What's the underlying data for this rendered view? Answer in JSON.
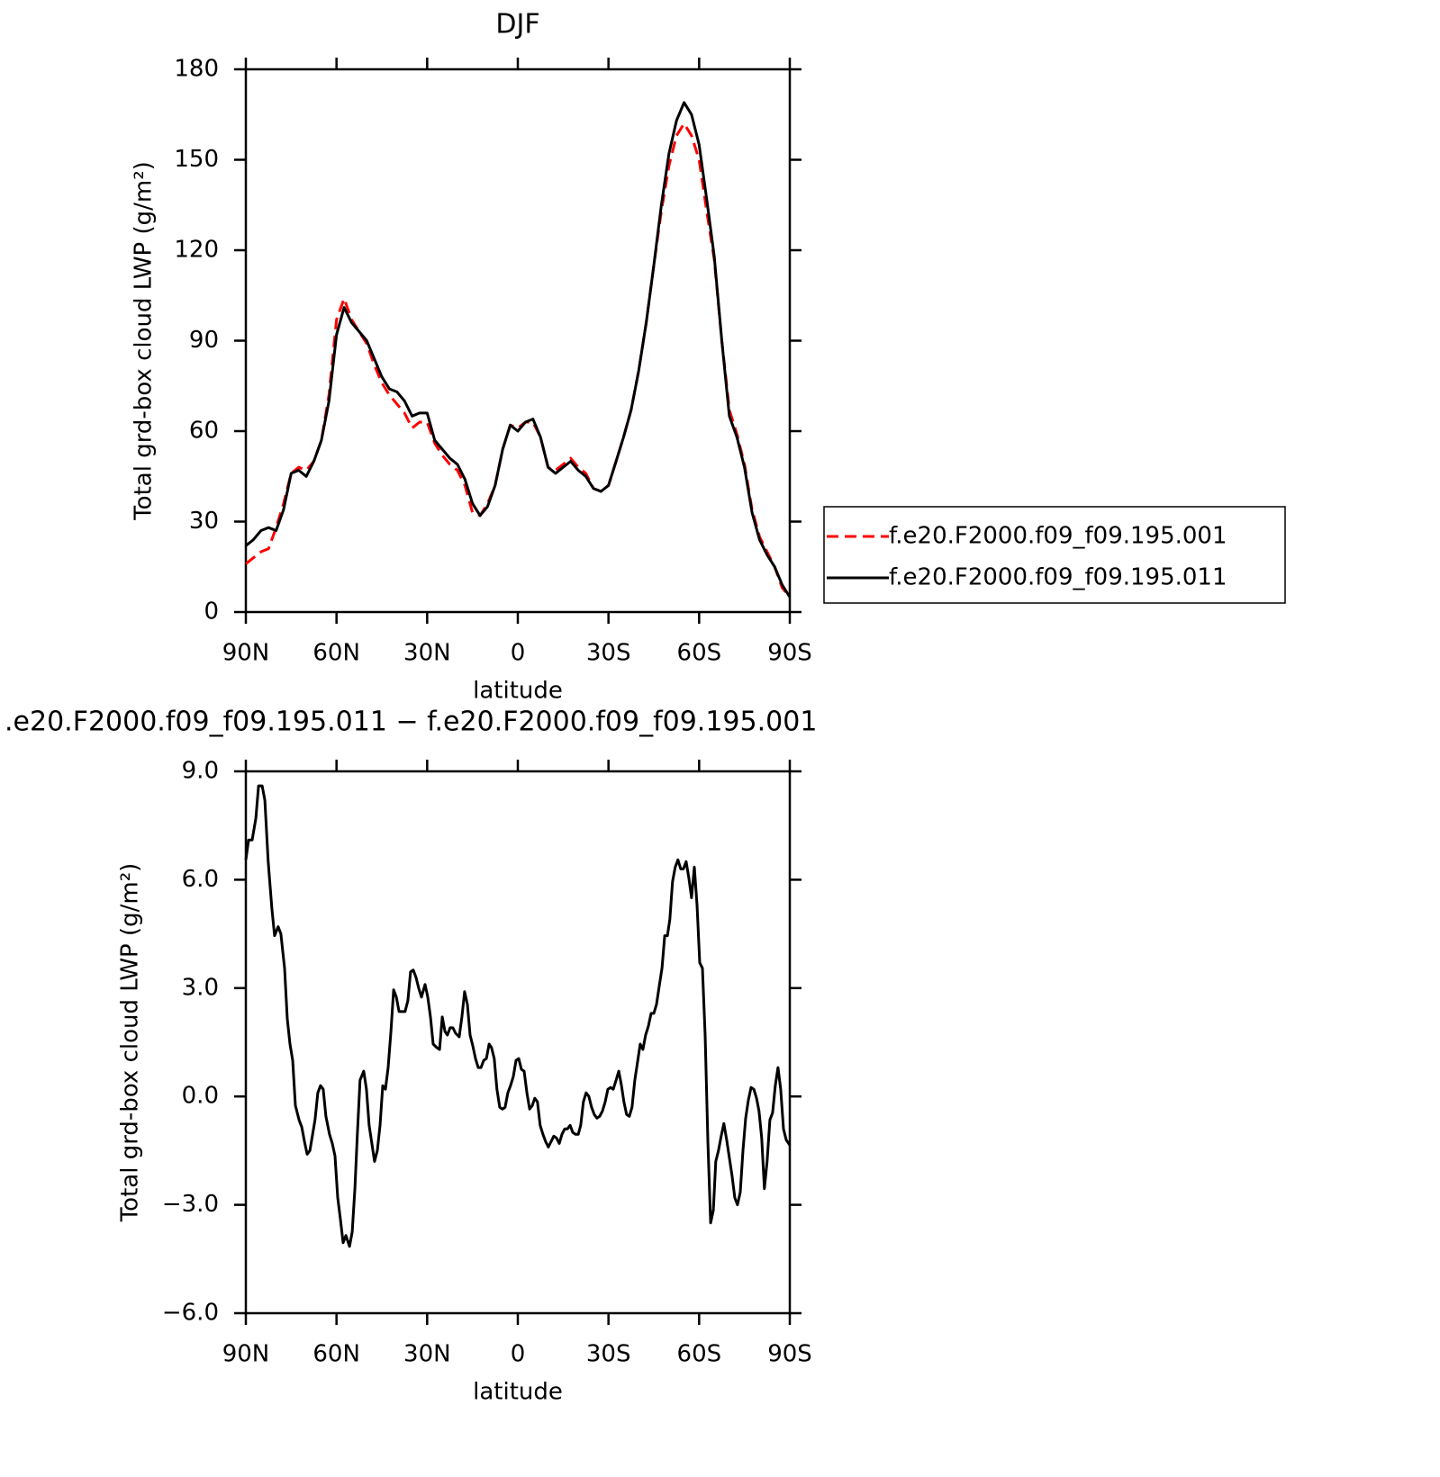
{
  "chart_data": [
    {
      "type": "line",
      "title": "DJF",
      "xlabel": "latitude",
      "ylabel": "Total grd-box cloud LWP (g/m²)",
      "xlim": [
        90,
        -90
      ],
      "ylim": [
        0,
        180
      ],
      "xticks": [
        {
          "value": 90,
          "label": "90N"
        },
        {
          "value": 60,
          "label": "60N"
        },
        {
          "value": 30,
          "label": "30N"
        },
        0,
        {
          "value": -30,
          "label": "30S"
        },
        {
          "value": -60,
          "label": "60S"
        },
        {
          "value": -90,
          "label": "90S"
        }
      ],
      "yticks": [
        0,
        30,
        60,
        90,
        120,
        150,
        180
      ],
      "legend": "right",
      "x": [
        90,
        87.5,
        85,
        82.5,
        80,
        77.5,
        75,
        72.5,
        70,
        67.5,
        65,
        62.5,
        60,
        57.5,
        55,
        52.5,
        50,
        47.5,
        45,
        42.5,
        40,
        37.5,
        35,
        32.5,
        30,
        27.5,
        25,
        22.5,
        20,
        17.5,
        15,
        12.5,
        10,
        7.5,
        5,
        2.5,
        0,
        -2.5,
        -5,
        -7.5,
        -10,
        -12.5,
        -15,
        -17.5,
        -20,
        -22.5,
        -25,
        -27.5,
        -30,
        -32.5,
        -35,
        -37.5,
        -40,
        -42.5,
        -45,
        -47.5,
        -50,
        -52.5,
        -55,
        -57.5,
        -60,
        -62.5,
        -65,
        -67.5,
        -70,
        -72.5,
        -75,
        -77.5,
        -80,
        -82.5,
        -85,
        -87.5,
        -90
      ],
      "series": [
        {
          "name": "f.e20.F2000.f09_f09.195.001",
          "color": "#ff0000",
          "style": "dashed",
          "values": [
            16,
            18,
            20,
            21,
            28,
            36,
            46,
            48,
            47,
            50,
            57,
            72,
            97,
            104,
            97,
            93,
            89,
            82,
            76,
            72,
            69,
            66,
            61,
            63,
            63,
            56,
            52,
            49,
            47,
            42,
            33,
            32,
            36,
            42,
            54,
            62,
            61,
            63,
            63,
            58,
            48,
            47,
            49,
            51,
            48,
            46,
            41,
            40,
            42,
            50,
            58,
            67,
            80,
            96,
            115,
            133,
            148,
            158,
            162,
            158,
            150,
            133,
            117,
            90,
            67,
            59,
            49,
            34,
            25,
            20,
            15,
            8,
            5
          ]
        },
        {
          "name": "f.e20.F2000.f09_f09.195.011",
          "color": "#000000",
          "style": "solid",
          "values": [
            22,
            24,
            27,
            28,
            27,
            34,
            46,
            47,
            45,
            50,
            57,
            70,
            92,
            101,
            96,
            93,
            90,
            84,
            78,
            74,
            73,
            70,
            65,
            66,
            66,
            57,
            54,
            51,
            49,
            44,
            36,
            32,
            35,
            42,
            54,
            62,
            60,
            63,
            64,
            58,
            48,
            46,
            48,
            50,
            47,
            45,
            41,
            40,
            42,
            50,
            58,
            67,
            80,
            96,
            115,
            135,
            152,
            163,
            169,
            165,
            155,
            137,
            118,
            90,
            65,
            58,
            48,
            33,
            24,
            19,
            15,
            9,
            5
          ]
        }
      ]
    },
    {
      "type": "line",
      "title": ".e20.F2000.f09_f09.195.011 − f.e20.F2000.f09_f09.195.001",
      "xlabel": "latitude",
      "ylabel": "Total grd-box cloud LWP (g/m²)",
      "xlim": [
        90,
        -90
      ],
      "ylim": [
        -6,
        9
      ],
      "xticks": [
        {
          "value": 90,
          "label": "90N"
        },
        {
          "value": 60,
          "label": "60N"
        },
        {
          "value": 30,
          "label": "30N"
        },
        0,
        {
          "value": -30,
          "label": "30S"
        },
        {
          "value": -60,
          "label": "60S"
        },
        {
          "value": -90,
          "label": "90S"
        }
      ],
      "yticks": [
        {
          "value": -6,
          "label": "−6.0"
        },
        {
          "value": -3,
          "label": "−3.0"
        },
        {
          "value": 0,
          "label": "0.0"
        },
        {
          "value": 3,
          "label": "3.0"
        },
        {
          "value": 6,
          "label": "6.0"
        },
        {
          "value": 9,
          "label": "9.0"
        }
      ],
      "x": [
        90.0,
        89.1,
        87.9,
        86.7,
        85.8,
        84.6,
        83.7,
        82.6,
        81.4,
        80.5,
        79.3,
        78.4,
        77.2,
        76.3,
        75.4,
        74.5,
        73.6,
        72.4,
        71.5,
        70.6,
        69.7,
        68.8,
        68.0,
        67.1,
        66.2,
        65.3,
        64.4,
        63.5,
        62.3,
        61.4,
        60.5,
        59.6,
        58.7,
        57.8,
        56.9,
        55.7,
        54.8,
        53.9,
        53.1,
        52.2,
        51.0,
        50.1,
        49.2,
        48.3,
        47.4,
        46.5,
        45.6,
        44.7,
        43.8,
        42.9,
        42.0,
        41.1,
        40.2,
        39.3,
        38.5,
        37.3,
        36.4,
        35.5,
        34.6,
        33.7,
        32.8,
        31.9,
        30.7,
        29.8,
        28.9,
        28.0,
        26.8,
        25.9,
        25.0,
        24.1,
        23.3,
        22.4,
        21.5,
        20.6,
        19.4,
        18.5,
        17.6,
        16.7,
        15.8,
        14.9,
        14.0,
        13.1,
        12.2,
        11.3,
        10.4,
        9.5,
        8.7,
        7.8,
        6.9,
        6.0,
        5.1,
        4.2,
        3.3,
        2.4,
        1.5,
        0.6,
        -0.3,
        -1.2,
        -2.1,
        -3.0,
        -3.9,
        -4.8,
        -5.6,
        -6.5,
        -7.4,
        -8.3,
        -9.2,
        -10.1,
        -11.0,
        -11.9,
        -12.8,
        -13.7,
        -14.6,
        -15.5,
        -16.4,
        -17.3,
        -18.2,
        -19.1,
        -20.0,
        -20.8,
        -21.7,
        -22.6,
        -23.5,
        -24.4,
        -25.3,
        -26.2,
        -27.1,
        -28.0,
        -28.9,
        -29.8,
        -30.7,
        -31.6,
        -32.5,
        -33.4,
        -34.3,
        -35.1,
        -36.0,
        -36.9,
        -37.8,
        -38.7,
        -39.6,
        -40.5,
        -41.4,
        -42.3,
        -43.2,
        -44.1,
        -45.0,
        -45.9,
        -46.8,
        -47.7,
        -48.6,
        -49.5,
        -50.3,
        -51.2,
        -52.1,
        -53.0,
        -53.9,
        -54.8,
        -55.7,
        -56.6,
        -57.5,
        -58.4,
        -59.3,
        -60.2,
        -61.1,
        -62.0,
        -62.9,
        -63.8,
        -64.7,
        -65.5,
        -66.4,
        -67.3,
        -68.2,
        -69.1,
        -70.0,
        -70.9,
        -71.8,
        -72.7,
        -73.6,
        -74.5,
        -75.4,
        -76.3,
        -77.2,
        -78.1,
        -79.0,
        -79.8,
        -80.7,
        -81.6,
        -82.5,
        -83.4,
        -84.3,
        -85.2,
        -86.1,
        -87.0,
        -87.9,
        -88.8,
        -90.0
      ],
      "color": "#000000",
      "values": [
        6.55,
        7.1,
        7.1,
        7.7,
        8.6,
        8.6,
        8.2,
        6.5,
        5.2,
        4.45,
        4.7,
        4.5,
        3.55,
        2.15,
        1.45,
        1.0,
        -0.25,
        -0.65,
        -0.85,
        -1.25,
        -1.6,
        -1.5,
        -1.1,
        -0.65,
        0.1,
        0.3,
        0.2,
        -0.55,
        -1.05,
        -1.3,
        -1.65,
        -2.8,
        -3.4,
        -4.05,
        -3.85,
        -4.15,
        -3.75,
        -2.55,
        -1.05,
        0.45,
        0.7,
        0.2,
        -0.8,
        -1.3,
        -1.8,
        -1.5,
        -0.8,
        0.3,
        0.2,
        0.8,
        1.8,
        2.95,
        2.75,
        2.35,
        2.35,
        2.35,
        2.65,
        3.45,
        3.5,
        3.3,
        3.0,
        2.75,
        3.1,
        2.75,
        2.2,
        1.45,
        1.35,
        1.3,
        2.2,
        1.8,
        1.7,
        1.9,
        1.9,
        1.75,
        1.65,
        2.2,
        2.9,
        2.55,
        1.7,
        1.4,
        1.05,
        0.8,
        0.8,
        1.0,
        1.05,
        1.45,
        1.35,
        1.05,
        0.2,
        -0.3,
        -0.35,
        -0.3,
        0.1,
        0.3,
        0.55,
        1.0,
        1.05,
        0.75,
        0.7,
        0.1,
        -0.35,
        -0.25,
        -0.05,
        -0.15,
        -0.8,
        -1.05,
        -1.25,
        -1.4,
        -1.25,
        -1.1,
        -1.15,
        -1.3,
        -1.05,
        -0.9,
        -0.9,
        -0.8,
        -1.0,
        -1.05,
        -1.05,
        -0.8,
        -0.15,
        0.1,
        0.0,
        -0.3,
        -0.5,
        -0.6,
        -0.55,
        -0.4,
        -0.15,
        0.2,
        0.25,
        0.2,
        0.45,
        0.7,
        0.3,
        -0.15,
        -0.5,
        -0.55,
        -0.3,
        0.45,
        0.95,
        1.45,
        1.3,
        1.7,
        1.95,
        2.3,
        2.3,
        2.55,
        3.05,
        3.55,
        4.45,
        4.45,
        4.9,
        5.95,
        6.35,
        6.55,
        6.3,
        6.3,
        6.5,
        6.05,
        5.5,
        6.35,
        5.3,
        3.7,
        3.55,
        1.7,
        -1.3,
        -3.5,
        -3.15,
        -1.8,
        -1.5,
        -1.1,
        -0.75,
        -1.2,
        -1.7,
        -2.2,
        -2.8,
        -3.0,
        -2.65,
        -1.5,
        -0.6,
        -0.1,
        0.25,
        0.2,
        -0.05,
        -0.4,
        -1.15,
        -2.55,
        -1.8,
        -0.65,
        -0.45,
        0.3,
        0.8,
        0.2,
        -0.9,
        -1.2,
        -1.35
      ]
    }
  ]
}
